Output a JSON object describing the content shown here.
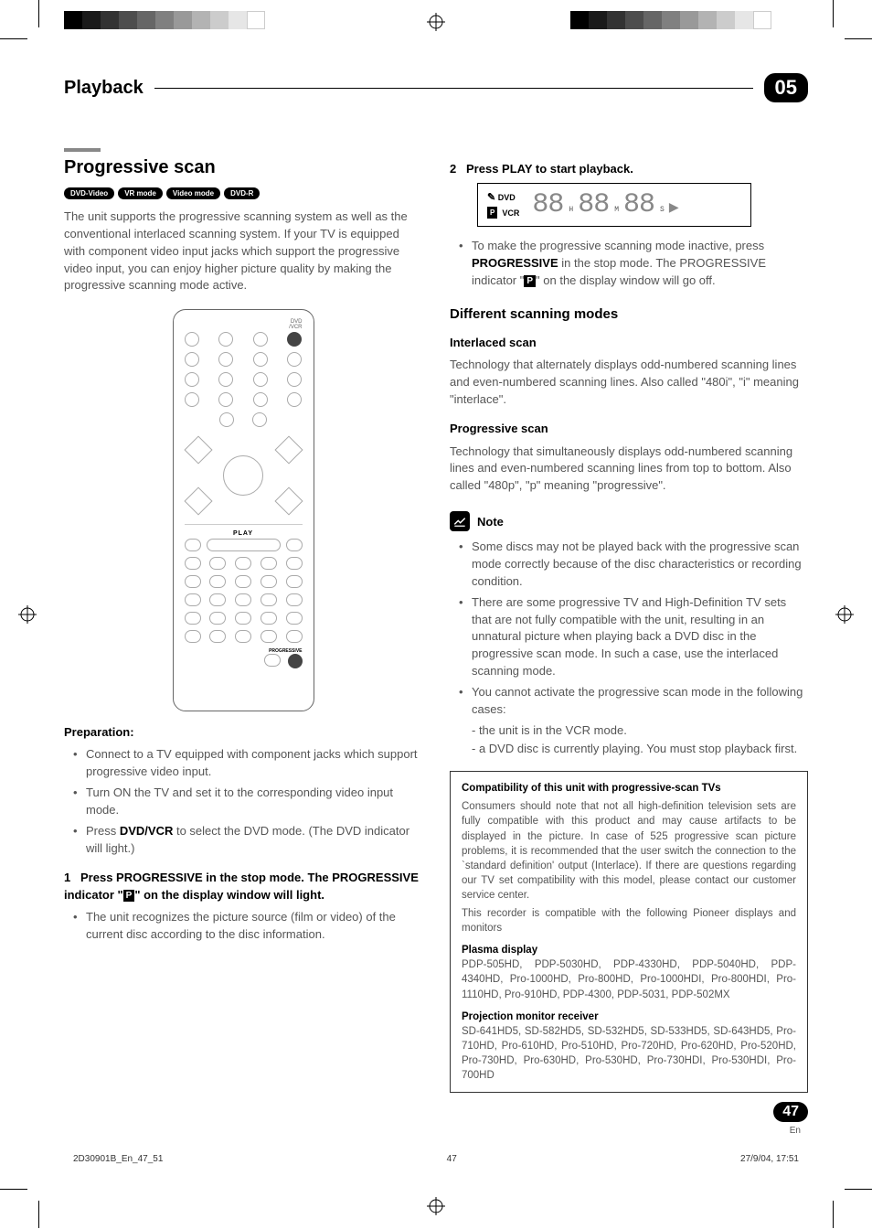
{
  "printer": {
    "gray_swatches": [
      "#000000",
      "#1a1a1a",
      "#333333",
      "#4d4d4d",
      "#666666",
      "#808080",
      "#999999",
      "#b3b3b3",
      "#cccccc",
      "#e6e6e6",
      "#ffffff"
    ],
    "cmy_swatches": [
      "#00aeef",
      "#ec008c",
      "#fff200",
      "#000000"
    ]
  },
  "header": {
    "title": "Playback",
    "chapter": "05"
  },
  "left": {
    "section_title": "Progressive scan",
    "badges": [
      "DVD-Video",
      "VR mode",
      "Video mode",
      "DVD-R"
    ],
    "intro": "The unit supports the progressive scanning system as well as the conventional interlaced scanning system. If your TV is equipped with component video input jacks which support the progressive video input, you can enjoy higher picture quality by making the progressive scanning mode active.",
    "remote": {
      "top_label": "DVD\n/VCR",
      "play_label": "PLAY",
      "progressive_label": "PROGRESSIVE"
    },
    "prep_title": "Preparation:",
    "prep_items": [
      "Connect to a TV equipped with component jacks which support progressive video input.",
      "Turn ON the TV and set it to the corresponding video input mode.",
      "Press <b>DVD/VCR</b> to select the DVD mode. (The DVD indicator will light.)"
    ],
    "step1_prefix": "1",
    "step1_text": "Press PROGRESSIVE in the stop mode. The PROGRESSIVE indicator \"",
    "step1_suffix": "\" on the display window will light.",
    "step1_bullet": "The unit recognizes the picture source (film or video) of the current disc according to the disc information."
  },
  "right": {
    "step2_prefix": "2",
    "step2_text": "Press PLAY to start playback.",
    "display": {
      "line1": "DVD",
      "line2": "VCR",
      "digits": "00 00 00",
      "subs": [
        "H",
        "M",
        "S"
      ]
    },
    "step2_bullet_pre": "To make the progressive scanning mode inactive, press <b>PROGRESSIVE</b> in the stop mode. The PROGRESSIVE indicator \"",
    "step2_bullet_post": "\" on the display window will go off.",
    "modes_title": "Different scanning modes",
    "interlaced_title": "Interlaced scan",
    "interlaced_body": "Technology that alternately displays odd-numbered scanning lines and even-numbered scanning lines. Also called \"480i\", \"i\" meaning \"interlace\".",
    "progressive_title": "Progressive scan",
    "progressive_body": "Technology that simultaneously displays odd-numbered scanning lines and even-numbered scanning lines from top to bottom. Also called \"480p\", \"p\" meaning \"progressive\".",
    "note_label": "Note",
    "note_items": [
      "Some discs may not be played back with the progressive scan mode correctly because of the disc characteristics or recording condition.",
      "There are some progressive TV and High-Definition TV sets that are not fully compatible with the unit, resulting in an unnatural picture when playing back a DVD disc in the progressive scan mode. In such a case, use the interlaced scanning mode.",
      "You cannot activate the progressive scan mode in the following cases:"
    ],
    "note_sub": [
      "-  the unit is in the VCR mode.",
      "-  a DVD disc is currently playing. You must stop playback first."
    ],
    "compat": {
      "head": "Compatibility of this unit with progressive-scan TVs",
      "body1": "Consumers should note that not all high-definition television sets are fully compatible with this product and may cause artifacts to be displayed in the picture. In case of 525 progressive scan picture problems, it is recommended that the user switch the connection to the `standard definition' output (Interlace). If there are questions regarding our TV set compatibility with this model, please contact our customer service center.",
      "body2": "This recorder is compatible with the following Pioneer displays and monitors",
      "plasma_head": "Plasma display",
      "plasma_body": "PDP-505HD, PDP-5030HD, PDP-4330HD, PDP-5040HD, PDP-4340HD, Pro-1000HD, Pro-800HD, Pro-1000HDI, Pro-800HDI, Pro-1110HD, Pro-910HD, PDP-4300, PDP-5031, PDP-502MX",
      "proj_head": "Projection monitor receiver",
      "proj_body": " SD-641HD5, SD-582HD5, SD-532HD5, SD-533HD5, SD-643HD5, Pro-710HD, Pro-610HD, Pro-510HD, Pro-720HD, Pro-620HD, Pro-520HD, Pro-730HD, Pro-630HD, Pro-530HD, Pro-730HDI, Pro-530HDI, Pro-700HD"
    }
  },
  "page_number": "47",
  "page_lang": "En",
  "footer": {
    "filename": "2D30901B_En_47_51",
    "page": "47",
    "timestamp": "27/9/04, 17:51"
  }
}
